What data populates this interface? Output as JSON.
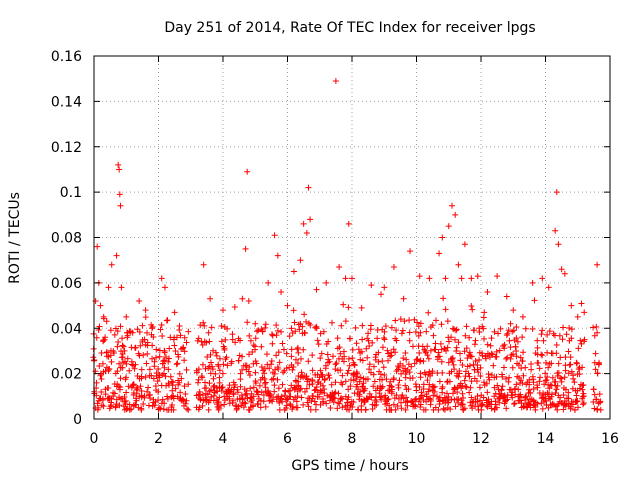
{
  "chart_data": {
    "type": "scatter",
    "title": "Day 251 of 2014, Rate Of TEC Index for receiver lpgs",
    "xlabel": "GPS time / hours",
    "ylabel": "ROTI / TECUs",
    "xlim": [
      0,
      16
    ],
    "ylim": [
      0,
      0.16
    ],
    "xticks": [
      0,
      2,
      4,
      6,
      8,
      10,
      12,
      14,
      16
    ],
    "xtick_labels": [
      "0",
      "2",
      "4",
      "6",
      "8",
      "10",
      "12",
      "14",
      "16"
    ],
    "yticks": [
      0,
      0.02,
      0.04,
      0.06,
      0.08,
      0.1,
      0.12,
      0.14,
      0.16
    ],
    "ytick_labels": [
      "0",
      "0.02",
      "0.04",
      "0.06",
      "0.08",
      "0.1",
      "0.12",
      "0.14",
      "0.16"
    ],
    "grid": true,
    "marker": "+",
    "series_color": "#ff0000",
    "segments": [
      {
        "start": 0.0,
        "end": 2.9,
        "step": 0.05,
        "base": 0.018
      },
      {
        "start": 3.2,
        "end": 15.2,
        "step": 0.05,
        "base": 0.02
      },
      {
        "start": 15.5,
        "end": 15.7,
        "step": 0.05,
        "base": 0.018
      }
    ],
    "points": [
      [
        0.05,
        0.052
      ],
      [
        0.1,
        0.076
      ],
      [
        0.15,
        0.06
      ],
      [
        0.2,
        0.05
      ],
      [
        0.3,
        0.045
      ],
      [
        0.45,
        0.058
      ],
      [
        0.55,
        0.068
      ],
      [
        0.7,
        0.072
      ],
      [
        0.75,
        0.112
      ],
      [
        0.78,
        0.11
      ],
      [
        0.8,
        0.099
      ],
      [
        0.82,
        0.094
      ],
      [
        0.85,
        0.058
      ],
      [
        1.0,
        0.045
      ],
      [
        1.2,
        0.038
      ],
      [
        1.4,
        0.052
      ],
      [
        1.6,
        0.048
      ],
      [
        1.8,
        0.04
      ],
      [
        2.1,
        0.062
      ],
      [
        2.2,
        0.058
      ],
      [
        2.5,
        0.047
      ],
      [
        2.65,
        0.041
      ],
      [
        3.4,
        0.068
      ],
      [
        3.6,
        0.053
      ],
      [
        4.0,
        0.048
      ],
      [
        4.3,
        0.035
      ],
      [
        4.6,
        0.053
      ],
      [
        4.7,
        0.075
      ],
      [
        4.75,
        0.109
      ],
      [
        4.8,
        0.004
      ],
      [
        5.0,
        0.042
      ],
      [
        5.4,
        0.06
      ],
      [
        5.6,
        0.081
      ],
      [
        5.7,
        0.072
      ],
      [
        5.8,
        0.056
      ],
      [
        6.0,
        0.05
      ],
      [
        6.2,
        0.065
      ],
      [
        6.4,
        0.07
      ],
      [
        6.5,
        0.086
      ],
      [
        6.6,
        0.082
      ],
      [
        6.65,
        0.102
      ],
      [
        6.7,
        0.088
      ],
      [
        6.9,
        0.057
      ],
      [
        7.2,
        0.06
      ],
      [
        7.5,
        0.149
      ],
      [
        7.6,
        0.067
      ],
      [
        7.8,
        0.062
      ],
      [
        7.9,
        0.086
      ],
      [
        8.0,
        0.062
      ],
      [
        8.3,
        0.049
      ],
      [
        8.6,
        0.059
      ],
      [
        8.9,
        0.055
      ],
      [
        9.0,
        0.058
      ],
      [
        9.3,
        0.067
      ],
      [
        9.6,
        0.053
      ],
      [
        9.8,
        0.074
      ],
      [
        10.1,
        0.063
      ],
      [
        10.4,
        0.062
      ],
      [
        10.7,
        0.073
      ],
      [
        10.8,
        0.08
      ],
      [
        10.9,
        0.062
      ],
      [
        11.0,
        0.085
      ],
      [
        11.1,
        0.094
      ],
      [
        11.2,
        0.09
      ],
      [
        11.3,
        0.068
      ],
      [
        11.4,
        0.062
      ],
      [
        11.5,
        0.077
      ],
      [
        11.7,
        0.062
      ],
      [
        11.9,
        0.063
      ],
      [
        12.2,
        0.056
      ],
      [
        12.5,
        0.063
      ],
      [
        12.8,
        0.054
      ],
      [
        13.0,
        0.048
      ],
      [
        13.3,
        0.045
      ],
      [
        13.6,
        0.06
      ],
      [
        13.9,
        0.062
      ],
      [
        14.1,
        0.058
      ],
      [
        14.3,
        0.083
      ],
      [
        14.35,
        0.1
      ],
      [
        14.4,
        0.077
      ],
      [
        14.5,
        0.066
      ],
      [
        14.6,
        0.064
      ],
      [
        14.8,
        0.05
      ],
      [
        15.0,
        0.045
      ],
      [
        15.2,
        0.047
      ],
      [
        15.6,
        0.068
      ],
      [
        15.6,
        0.038
      ],
      [
        4.8,
        0.052
      ],
      [
        0.9,
        0.025
      ],
      [
        12.1,
        0.047
      ]
    ]
  }
}
